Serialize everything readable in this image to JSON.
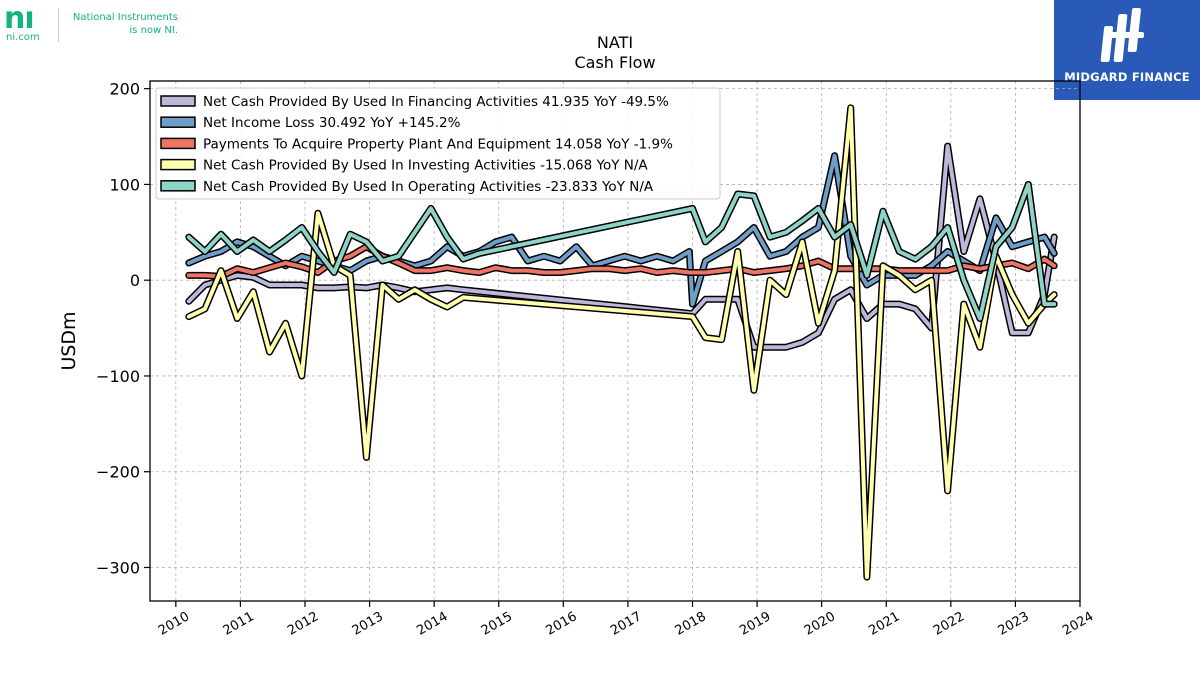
{
  "branding": {
    "left_logo_mark": "nı",
    "left_logo_sub": "ni.com",
    "left_tagline_1": "National Instruments",
    "left_tagline_2": "is now NI.",
    "right_logo_text": "MIDGARD FINANCE",
    "right_logo_color": "#2a5ab8",
    "left_logo_color": "#14b382"
  },
  "chart_data": {
    "type": "line",
    "title": "NATI",
    "subtitle": "Cash Flow",
    "ylabel": "USDm",
    "xlabel": "",
    "xlim": [
      2009.6,
      2024.0
    ],
    "ylim": [
      -335,
      208
    ],
    "x_ticks": [
      "2010",
      "2011",
      "2012",
      "2013",
      "2014",
      "2015",
      "2016",
      "2017",
      "2018",
      "2019",
      "2020",
      "2021",
      "2022",
      "2023",
      "2024"
    ],
    "y_ticks": [
      200,
      100,
      0,
      -100,
      -200,
      -300
    ],
    "y_tick_labels": [
      "200",
      "100",
      "0",
      "−100",
      "−200",
      "−300"
    ],
    "grid": true,
    "legend_position": "top-left",
    "series": [
      {
        "name": "Net Cash Provided By Used In Financing Activities  41.935 YoY -49.5%",
        "color": "#bcb8da",
        "x": [
          2010.2,
          2010.45,
          2010.7,
          2010.95,
          2011.2,
          2011.45,
          2011.7,
          2011.95,
          2012.2,
          2012.45,
          2012.7,
          2012.95,
          2013.2,
          2013.45,
          2013.7,
          2013.95,
          2014.2,
          2014.45,
          2018.0,
          2018.2,
          2018.45,
          2018.7,
          2018.95,
          2019.2,
          2019.45,
          2019.7,
          2019.95,
          2020.2,
          2020.45,
          2020.7,
          2020.95,
          2021.2,
          2021.45,
          2021.7,
          2021.95,
          2022.2,
          2022.45,
          2022.7,
          2022.95,
          2023.2,
          2023.45,
          2023.6
        ],
        "y": [
          -22,
          -5,
          0,
          5,
          3,
          -5,
          -5,
          -5,
          -8,
          -8,
          -7,
          -8,
          -5,
          -8,
          -12,
          -10,
          -8,
          -10,
          -35,
          -20,
          -20,
          -20,
          -70,
          -70,
          -70,
          -65,
          -55,
          -20,
          -10,
          -40,
          -25,
          -25,
          -30,
          -50,
          140,
          30,
          85,
          20,
          -55,
          -55,
          -15,
          45
        ]
      },
      {
        "name": "Net Income Loss  30.492 YoY +145.2%",
        "color": "#6f9ec8",
        "x": [
          2010.2,
          2010.45,
          2010.7,
          2010.95,
          2011.2,
          2011.45,
          2011.7,
          2011.95,
          2012.2,
          2012.45,
          2012.7,
          2012.95,
          2013.2,
          2013.45,
          2013.7,
          2013.95,
          2014.2,
          2014.45,
          2014.7,
          2014.95,
          2015.2,
          2015.45,
          2015.7,
          2015.95,
          2016.2,
          2016.45,
          2016.7,
          2016.95,
          2017.2,
          2017.45,
          2017.7,
          2017.95,
          2018.0,
          2018.2,
          2018.45,
          2018.7,
          2018.95,
          2019.2,
          2019.45,
          2019.7,
          2019.95,
          2020.2,
          2020.45,
          2020.7,
          2020.95,
          2021.2,
          2021.45,
          2021.7,
          2021.95,
          2022.2,
          2022.45,
          2022.7,
          2022.95,
          2023.2,
          2023.45,
          2023.6
        ],
        "y": [
          18,
          25,
          30,
          40,
          35,
          25,
          15,
          25,
          20,
          15,
          10,
          20,
          25,
          20,
          15,
          20,
          35,
          25,
          30,
          40,
          45,
          20,
          25,
          20,
          35,
          15,
          20,
          25,
          20,
          25,
          20,
          30,
          -25,
          20,
          30,
          40,
          55,
          25,
          30,
          45,
          55,
          130,
          25,
          -5,
          5,
          5,
          5,
          15,
          30,
          20,
          10,
          65,
          35,
          40,
          45,
          28
        ]
      },
      {
        "name": "Payments To Acquire Property Plant And Equipment  14.058 YoY -1.9%",
        "color": "#ef7464",
        "x": [
          2010.2,
          2010.45,
          2010.7,
          2010.95,
          2011.2,
          2011.45,
          2011.7,
          2011.95,
          2012.2,
          2012.45,
          2012.7,
          2012.95,
          2013.2,
          2013.45,
          2013.7,
          2013.95,
          2014.2,
          2014.45,
          2014.7,
          2014.95,
          2015.2,
          2015.45,
          2015.7,
          2015.95,
          2016.2,
          2016.45,
          2016.7,
          2016.95,
          2017.2,
          2017.45,
          2017.7,
          2017.95,
          2018.0,
          2018.2,
          2018.45,
          2018.7,
          2018.95,
          2019.2,
          2019.45,
          2019.7,
          2019.95,
          2020.2,
          2020.45,
          2020.7,
          2020.95,
          2021.2,
          2021.45,
          2021.7,
          2021.95,
          2022.2,
          2022.45,
          2022.7,
          2022.95,
          2023.2,
          2023.45,
          2023.6
        ],
        "y": [
          5,
          5,
          4,
          12,
          8,
          13,
          18,
          14,
          8,
          20,
          25,
          35,
          25,
          18,
          10,
          10,
          13,
          10,
          8,
          13,
          10,
          10,
          8,
          8,
          10,
          12,
          12,
          10,
          12,
          8,
          10,
          8,
          8,
          8,
          10,
          12,
          8,
          10,
          12,
          15,
          20,
          12,
          12,
          12,
          12,
          10,
          10,
          10,
          10,
          15,
          12,
          15,
          18,
          12,
          22,
          15
        ]
      },
      {
        "name": "Net Cash Provided By Used In Investing Activities  -15.068 YoY N/A",
        "color": "#ffffaf",
        "x": [
          2010.2,
          2010.45,
          2010.7,
          2010.95,
          2011.2,
          2011.45,
          2011.7,
          2011.95,
          2012.2,
          2012.45,
          2012.7,
          2012.95,
          2013.2,
          2013.45,
          2013.7,
          2013.95,
          2014.2,
          2014.45,
          2018.0,
          2018.2,
          2018.45,
          2018.7,
          2018.95,
          2019.2,
          2019.45,
          2019.7,
          2019.95,
          2020.2,
          2020.45,
          2020.7,
          2020.95,
          2021.2,
          2021.45,
          2021.7,
          2021.95,
          2022.2,
          2022.45,
          2022.7,
          2022.95,
          2023.2,
          2023.45,
          2023.6
        ],
        "y": [
          -38,
          -30,
          10,
          -40,
          -12,
          -75,
          -45,
          -100,
          70,
          15,
          5,
          -185,
          -5,
          -20,
          -10,
          -20,
          -28,
          -18,
          -38,
          -60,
          -62,
          30,
          -115,
          0,
          -15,
          40,
          -45,
          10,
          180,
          -310,
          15,
          5,
          -10,
          0,
          -220,
          -25,
          -70,
          25,
          -15,
          -45,
          -25,
          -15
        ]
      },
      {
        "name": "Net Cash Provided By Used In Operating Activities  -23.833 YoY N/A",
        "color": "#8dd3c7",
        "x": [
          2010.2,
          2010.45,
          2010.7,
          2010.95,
          2011.2,
          2011.45,
          2011.7,
          2011.95,
          2012.2,
          2012.45,
          2012.7,
          2012.95,
          2013.2,
          2013.45,
          2013.7,
          2013.95,
          2014.2,
          2014.45,
          2014.7,
          2018.0,
          2018.2,
          2018.45,
          2018.7,
          2018.95,
          2019.2,
          2019.45,
          2019.7,
          2019.95,
          2020.2,
          2020.45,
          2020.7,
          2020.95,
          2021.2,
          2021.45,
          2021.7,
          2021.95,
          2022.2,
          2022.45,
          2022.7,
          2022.95,
          2023.2,
          2023.45,
          2023.6
        ],
        "y": [
          45,
          30,
          48,
          30,
          42,
          30,
          42,
          55,
          30,
          8,
          48,
          40,
          20,
          25,
          50,
          75,
          45,
          22,
          28,
          75,
          40,
          55,
          90,
          88,
          45,
          50,
          62,
          75,
          45,
          58,
          5,
          72,
          30,
          22,
          35,
          55,
          0,
          -40,
          35,
          55,
          100,
          -25,
          -25
        ]
      }
    ]
  }
}
